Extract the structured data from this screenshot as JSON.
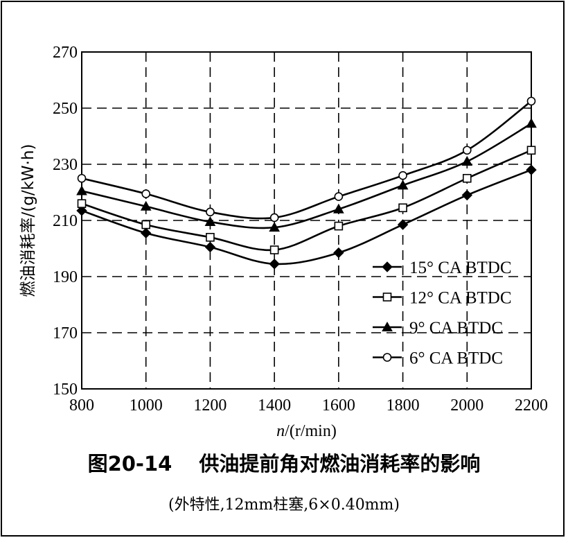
{
  "chart_data": {
    "type": "line",
    "x": [
      800,
      1000,
      1200,
      1400,
      1600,
      1800,
      2000,
      2200
    ],
    "xlim": [
      800,
      2200
    ],
    "ylim": [
      150,
      270
    ],
    "xticks": [
      800,
      1000,
      1200,
      1400,
      1600,
      1800,
      2000,
      2200
    ],
    "yticks": [
      150,
      170,
      190,
      210,
      230,
      250,
      270
    ],
    "xlabel_var": "n",
    "xlabel_unit": "/(r/min)",
    "ylabel": "燃油消耗率/(g/kW·h)",
    "grid": "dashed",
    "legend_position": "right",
    "series": [
      {
        "name": "15° CA BTDC",
        "marker": "filled-diamond",
        "values": [
          213.5,
          205.5,
          200.5,
          194.5,
          198.5,
          208.5,
          219,
          228
        ]
      },
      {
        "name": "12° CA BTDC",
        "marker": "open-square",
        "values": [
          216,
          208.5,
          204,
          199.5,
          208,
          214.5,
          225,
          235
        ]
      },
      {
        "name": "9° CA BTDC",
        "marker": "filled-triangle",
        "values": [
          220.5,
          215,
          209.5,
          207.5,
          214,
          222.5,
          231,
          244.5
        ]
      },
      {
        "name": "6° CA BTDC",
        "marker": "open-circle",
        "values": [
          225,
          219.5,
          213,
          211,
          218.5,
          226,
          235,
          252.5
        ]
      }
    ]
  },
  "caption": {
    "title": "图20-14　 供油提前角对燃油消耗率的影响",
    "subtitle": "(外特性,12mm柱塞,6×0.40mm)"
  }
}
